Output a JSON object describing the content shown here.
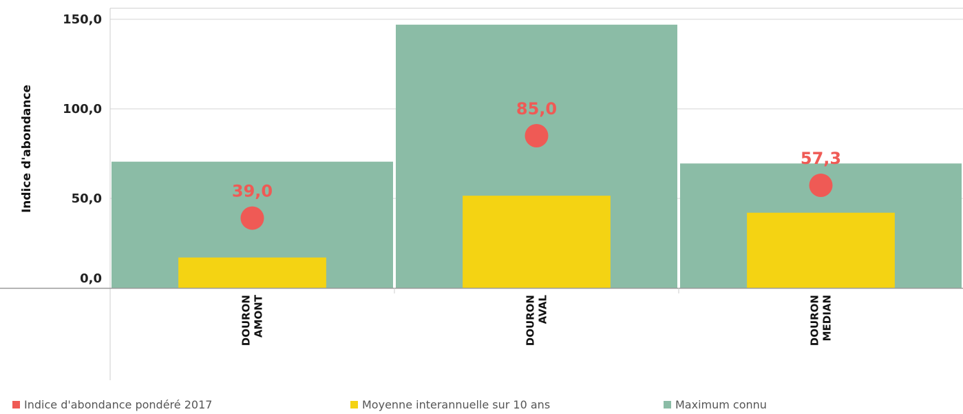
{
  "chart_data": {
    "type": "bar",
    "categories": [
      "DOURON AMONT",
      "DOURON AVAL",
      "DOURON MEDIAN"
    ],
    "category_lines": [
      [
        "DOURON",
        "AMONT"
      ],
      [
        "DOURON",
        "AVAL"
      ],
      [
        "DOURON",
        "MEDIAN"
      ]
    ],
    "ylabel": "Indice d'abondance",
    "xlabel": "",
    "ylim": [
      0,
      150
    ],
    "yticks": [
      {
        "value": 0,
        "label": "0,0"
      },
      {
        "value": 50,
        "label": "50,0"
      },
      {
        "value": 100,
        "label": "100,0"
      },
      {
        "value": 150,
        "label": "150,0"
      }
    ],
    "grid": true,
    "legend_position": "bottom",
    "series": [
      {
        "name": "Maximum connu",
        "kind": "bar-wide",
        "color": "#8bbca6",
        "values": [
          70.5,
          147,
          69.5
        ]
      },
      {
        "name": "Moyenne interannuelle sur 10 ans",
        "kind": "bar-narrow",
        "color": "#f4d313",
        "values": [
          17,
          51.5,
          42
        ]
      },
      {
        "name": "Indice d'abondance pondéré 2017",
        "kind": "point",
        "color": "#ef5a55",
        "values": [
          39.0,
          85.0,
          57.3
        ],
        "labels": [
          "39,0",
          "85,0",
          "57,3"
        ]
      }
    ],
    "legend_order": [
      "Indice d'abondance pondéré 2017",
      "Moyenne interannuelle sur 10 ans",
      "Maximum connu"
    ]
  }
}
